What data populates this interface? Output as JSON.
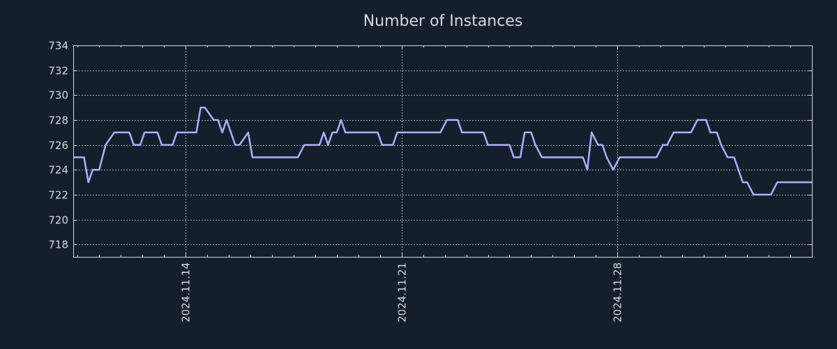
{
  "chart_data": {
    "type": "line",
    "title": "Number of Instances",
    "xlabel": "",
    "ylabel": "",
    "ylim": [
      717,
      734
    ],
    "yticks": [
      718,
      720,
      722,
      724,
      726,
      728,
      730,
      732,
      734
    ],
    "xlim_days": [
      0,
      34.2
    ],
    "xticks": [
      {
        "label": "2024.11.14",
        "day": 5.2
      },
      {
        "label": "2024.11.21",
        "day": 15.2
      },
      {
        "label": "2024.11.28",
        "day": 25.2
      }
    ],
    "grid": true,
    "colors": {
      "background": "#151f2c",
      "line": "#aab0ff",
      "text": "#d4d8de"
    },
    "series": [
      {
        "name": "Number of Instances",
        "x": [
          0,
          0.5,
          0.7,
          0.9,
          1.2,
          1.5,
          1.9,
          2.6,
          2.8,
          3.1,
          3.3,
          3.9,
          4.1,
          4.6,
          4.8,
          5.7,
          5.9,
          6.1,
          6.5,
          6.7,
          6.9,
          7.1,
          7.5,
          7.7,
          8.1,
          8.3,
          8.7,
          9.1,
          10.4,
          10.7,
          11.4,
          11.6,
          11.8,
          12.0,
          12.2,
          12.4,
          12.6,
          14.1,
          14.3,
          14.8,
          15.0,
          17.0,
          17.3,
          17.8,
          18.0,
          19.0,
          19.2,
          20.2,
          20.4,
          20.7,
          20.9,
          21.2,
          21.4,
          21.7,
          22.2,
          22.4,
          23.6,
          23.8,
          24.0,
          24.3,
          24.5,
          24.7,
          25.0,
          25.3,
          27.0,
          27.3,
          27.5,
          27.8,
          28.6,
          28.9,
          29.3,
          29.5,
          29.8,
          30.0,
          30.3,
          30.6,
          31.0,
          31.2,
          31.5,
          31.7,
          32.3,
          32.6,
          32.9,
          33.5,
          34.2
        ],
        "values": [
          725,
          725,
          723,
          724,
          724,
          726,
          727,
          727,
          726,
          726,
          727,
          727,
          726,
          726,
          727,
          727,
          729,
          729,
          728,
          728,
          727,
          728,
          726,
          726,
          727,
          725,
          725,
          725,
          725,
          726,
          726,
          727,
          726,
          727,
          727,
          728,
          727,
          727,
          726,
          726,
          727,
          727,
          728,
          728,
          727,
          727,
          726,
          726,
          725,
          725,
          727,
          727,
          726,
          725,
          725,
          725,
          725,
          724,
          727,
          726,
          726,
          725,
          724,
          725,
          725,
          726,
          726,
          727,
          727,
          728,
          728,
          727,
          727,
          726,
          725,
          725,
          723,
          723,
          722,
          722,
          722,
          723,
          723,
          723,
          723
        ]
      }
    ]
  }
}
